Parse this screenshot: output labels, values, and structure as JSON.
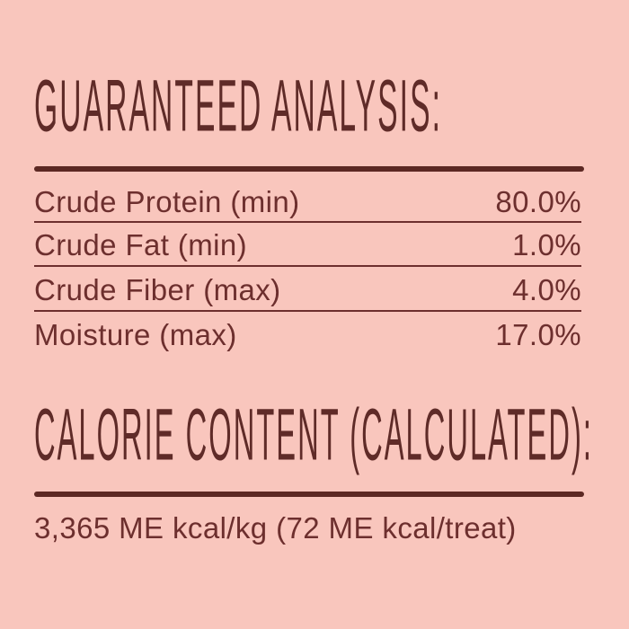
{
  "page": {
    "background_color": "#f9c6bd",
    "text_color": "#6d2f2e",
    "title_color": "#5f2b28",
    "rule_color": "#5c2823"
  },
  "guaranteed_analysis": {
    "title": "GUARANTEED ANALYSIS:",
    "rows": [
      {
        "label": "Crude Protein (min)",
        "value": "80.0%"
      },
      {
        "label": "Crude Fat (min)",
        "value": "1.0%"
      },
      {
        "label": "Crude Fiber (max)",
        "value": "4.0%"
      },
      {
        "label": "Moisture (max)",
        "value": "17.0%"
      }
    ]
  },
  "calorie_content": {
    "title": "CALORIE CONTENT (CALCULATED):",
    "value": "3,365 ME kcal/kg (72 ME kcal/treat)"
  }
}
